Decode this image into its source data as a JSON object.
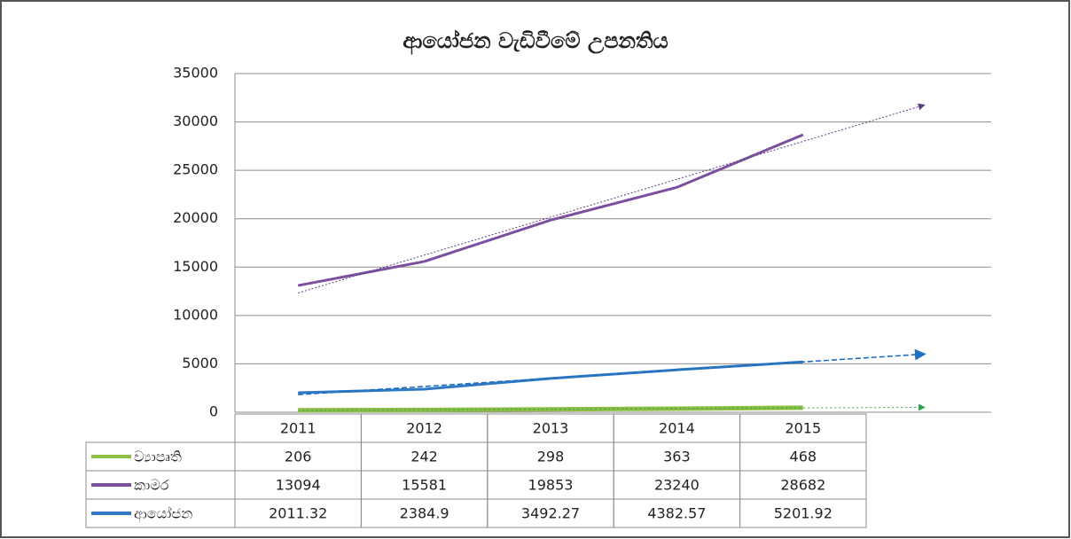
{
  "chart_data": {
    "type": "line",
    "title": "ආයෝජන වැඩිවීමේ උපනතිය",
    "categories": [
      "2011",
      "2012",
      "2013",
      "2014",
      "2015"
    ],
    "series": [
      {
        "name": "ව්‍යාපෘති",
        "color": "#8cbd45",
        "values": [
          206,
          242,
          298,
          363,
          468
        ]
      },
      {
        "name": "කාමර",
        "color": "#7b509f",
        "values": [
          13094,
          15581,
          19853,
          23240,
          28682
        ]
      },
      {
        "name": "ආයෝජන",
        "color": "#2f78c4",
        "values": [
          2011.32,
          2384.9,
          3492.27,
          4382.57,
          5201.92
        ]
      }
    ],
    "ylim": [
      0,
      35000
    ],
    "yticks": [
      0,
      5000,
      10000,
      15000,
      20000,
      25000,
      30000,
      35000
    ],
    "grid": true,
    "trendline": true,
    "data_table": true
  }
}
